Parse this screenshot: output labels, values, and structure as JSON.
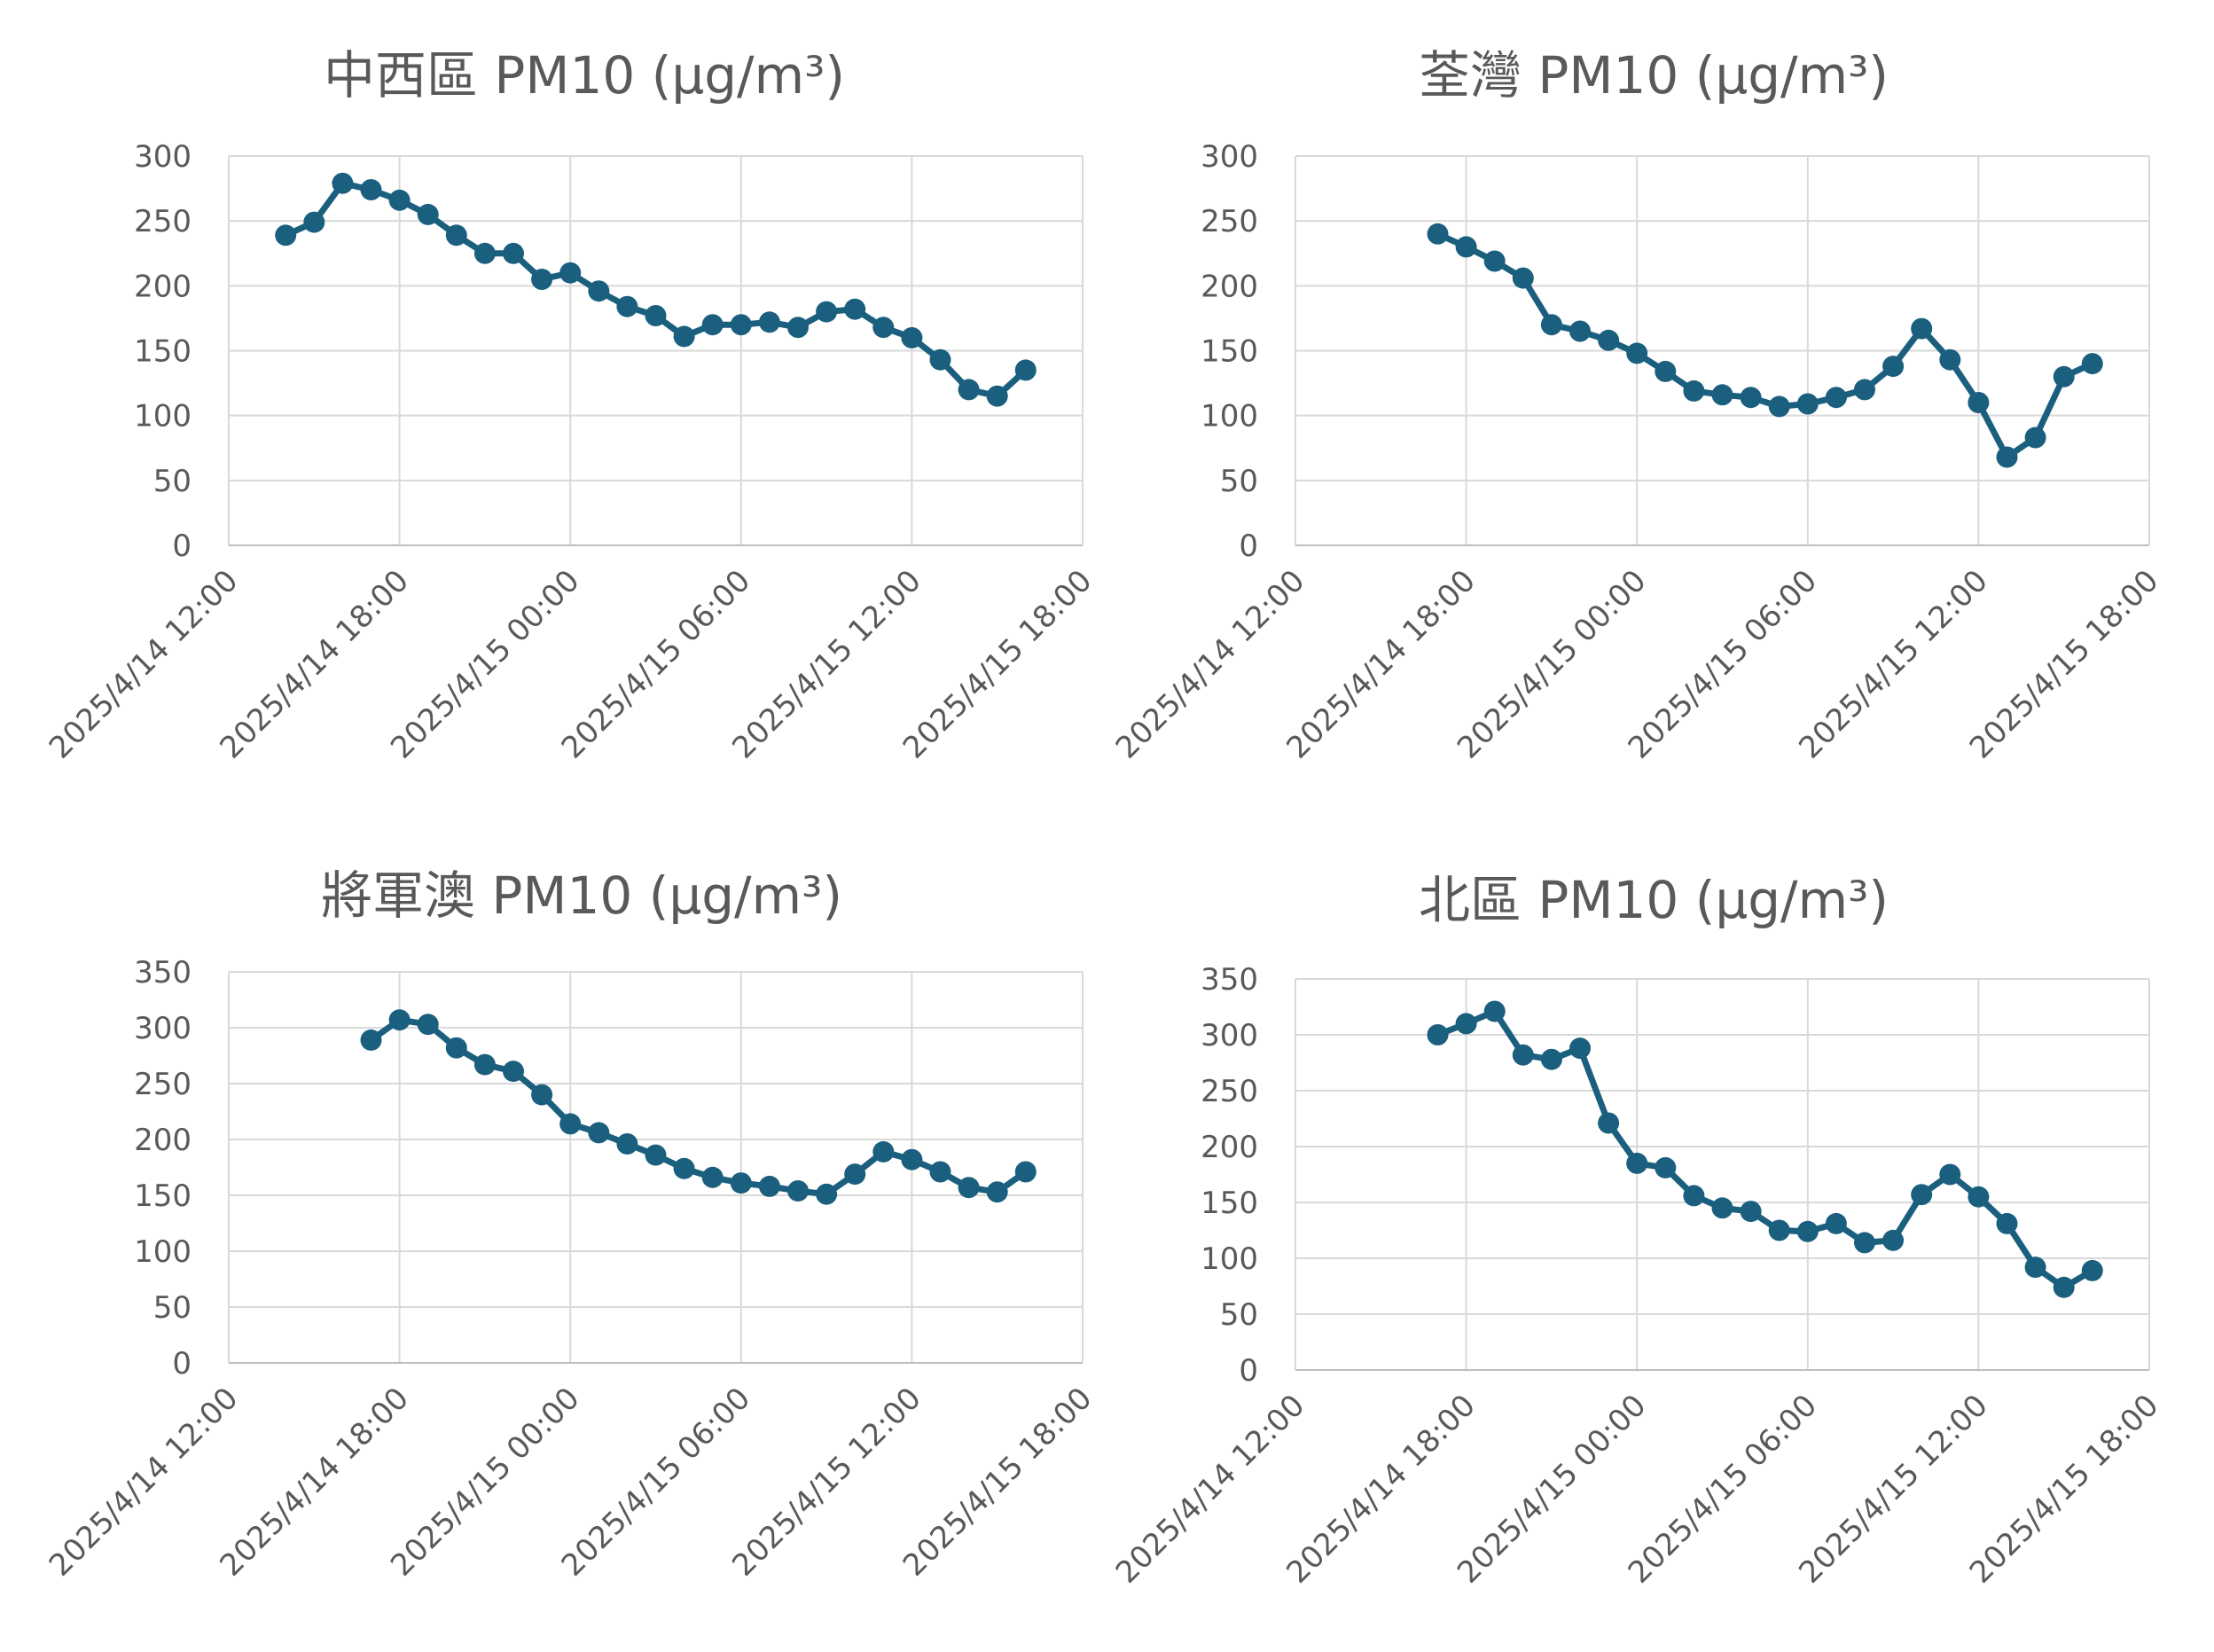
{
  "chart_data": [
    {
      "type": "line",
      "title": "中西區 PM10 (μg/m³)",
      "xlabel": "",
      "ylabel": "",
      "ylim": [
        0,
        300
      ],
      "yticks": [
        "0",
        "50",
        "100",
        "150",
        "200",
        "250",
        "300"
      ],
      "xlim_hours": [
        0,
        30
      ],
      "xticks": [
        "2025/4/14 12:00",
        "2025/4/14 18:00",
        "2025/4/15 00:00",
        "2025/4/15 06:00",
        "2025/4/15 12:00",
        "2025/4/15 18:00"
      ],
      "series": [
        {
          "name": "中西區",
          "start_hour": 2,
          "values": [
            239,
            249,
            279,
            274,
            266,
            255,
            239,
            225,
            225,
            205,
            210,
            196,
            184,
            177,
            161,
            170,
            170,
            172,
            168,
            180,
            182,
            168,
            160,
            143,
            120,
            115,
            135
          ]
        }
      ],
      "color": "#1b5f7e"
    },
    {
      "type": "line",
      "title": "荃灣 PM10 (μg/m³)",
      "xlabel": "",
      "ylabel": "",
      "ylim": [
        0,
        300
      ],
      "yticks": [
        "0",
        "50",
        "100",
        "150",
        "200",
        "250",
        "300"
      ],
      "xlim_hours": [
        0,
        30
      ],
      "xticks": [
        "2025/4/14 12:00",
        "2025/4/14 18:00",
        "2025/4/15 00:00",
        "2025/4/15 06:00",
        "2025/4/15 12:00",
        "2025/4/15 18:00"
      ],
      "series": [
        {
          "name": "荃灣",
          "start_hour": 5,
          "values": [
            240,
            230,
            219,
            206,
            170,
            165,
            158,
            148,
            134,
            119,
            116,
            114,
            107,
            109,
            114,
            120,
            138,
            167,
            143,
            110,
            68,
            83,
            130,
            140
          ]
        }
      ],
      "color": "#1b5f7e"
    },
    {
      "type": "line",
      "title": "將軍澳 PM10 (μg/m³)",
      "xlabel": "",
      "ylabel": "",
      "ylim": [
        0,
        350
      ],
      "yticks": [
        "0",
        "50",
        "100",
        "150",
        "200",
        "250",
        "300",
        "350"
      ],
      "xlim_hours": [
        0,
        30
      ],
      "xticks": [
        "2025/4/14 12:00",
        "2025/4/14 18:00",
        "2025/4/15 00:00",
        "2025/4/15 06:00",
        "2025/4/15 12:00",
        "2025/4/15 18:00"
      ],
      "series": [
        {
          "name": "將軍澳",
          "start_hour": 5,
          "values": [
            289,
            307,
            303,
            282,
            267,
            261,
            240,
            214,
            206,
            196,
            186,
            174,
            166,
            161,
            158,
            154,
            151,
            169,
            189,
            182,
            171,
            157,
            153,
            171
          ]
        }
      ],
      "color": "#1b5f7e"
    },
    {
      "type": "line",
      "title": "北區 PM10 (μg/m³)",
      "xlabel": "",
      "ylabel": "",
      "ylim": [
        0,
        350
      ],
      "yticks": [
        "0",
        "50",
        "100",
        "150",
        "200",
        "250",
        "300",
        "350"
      ],
      "xlim_hours": [
        0,
        30
      ],
      "xticks": [
        "2025/4/14 12:00",
        "2025/4/14 18:00",
        "2025/4/15 00:00",
        "2025/4/15 06:00",
        "2025/4/15 12:00",
        "2025/4/15 18:00"
      ],
      "series": [
        {
          "name": "北區",
          "start_hour": 5,
          "values": [
            300,
            310,
            321,
            282,
            278,
            288,
            221,
            185,
            181,
            156,
            145,
            142,
            125,
            124,
            131,
            114,
            116,
            157,
            175,
            155,
            131,
            92,
            74,
            89
          ]
        }
      ],
      "color": "#1b5f7e"
    }
  ]
}
